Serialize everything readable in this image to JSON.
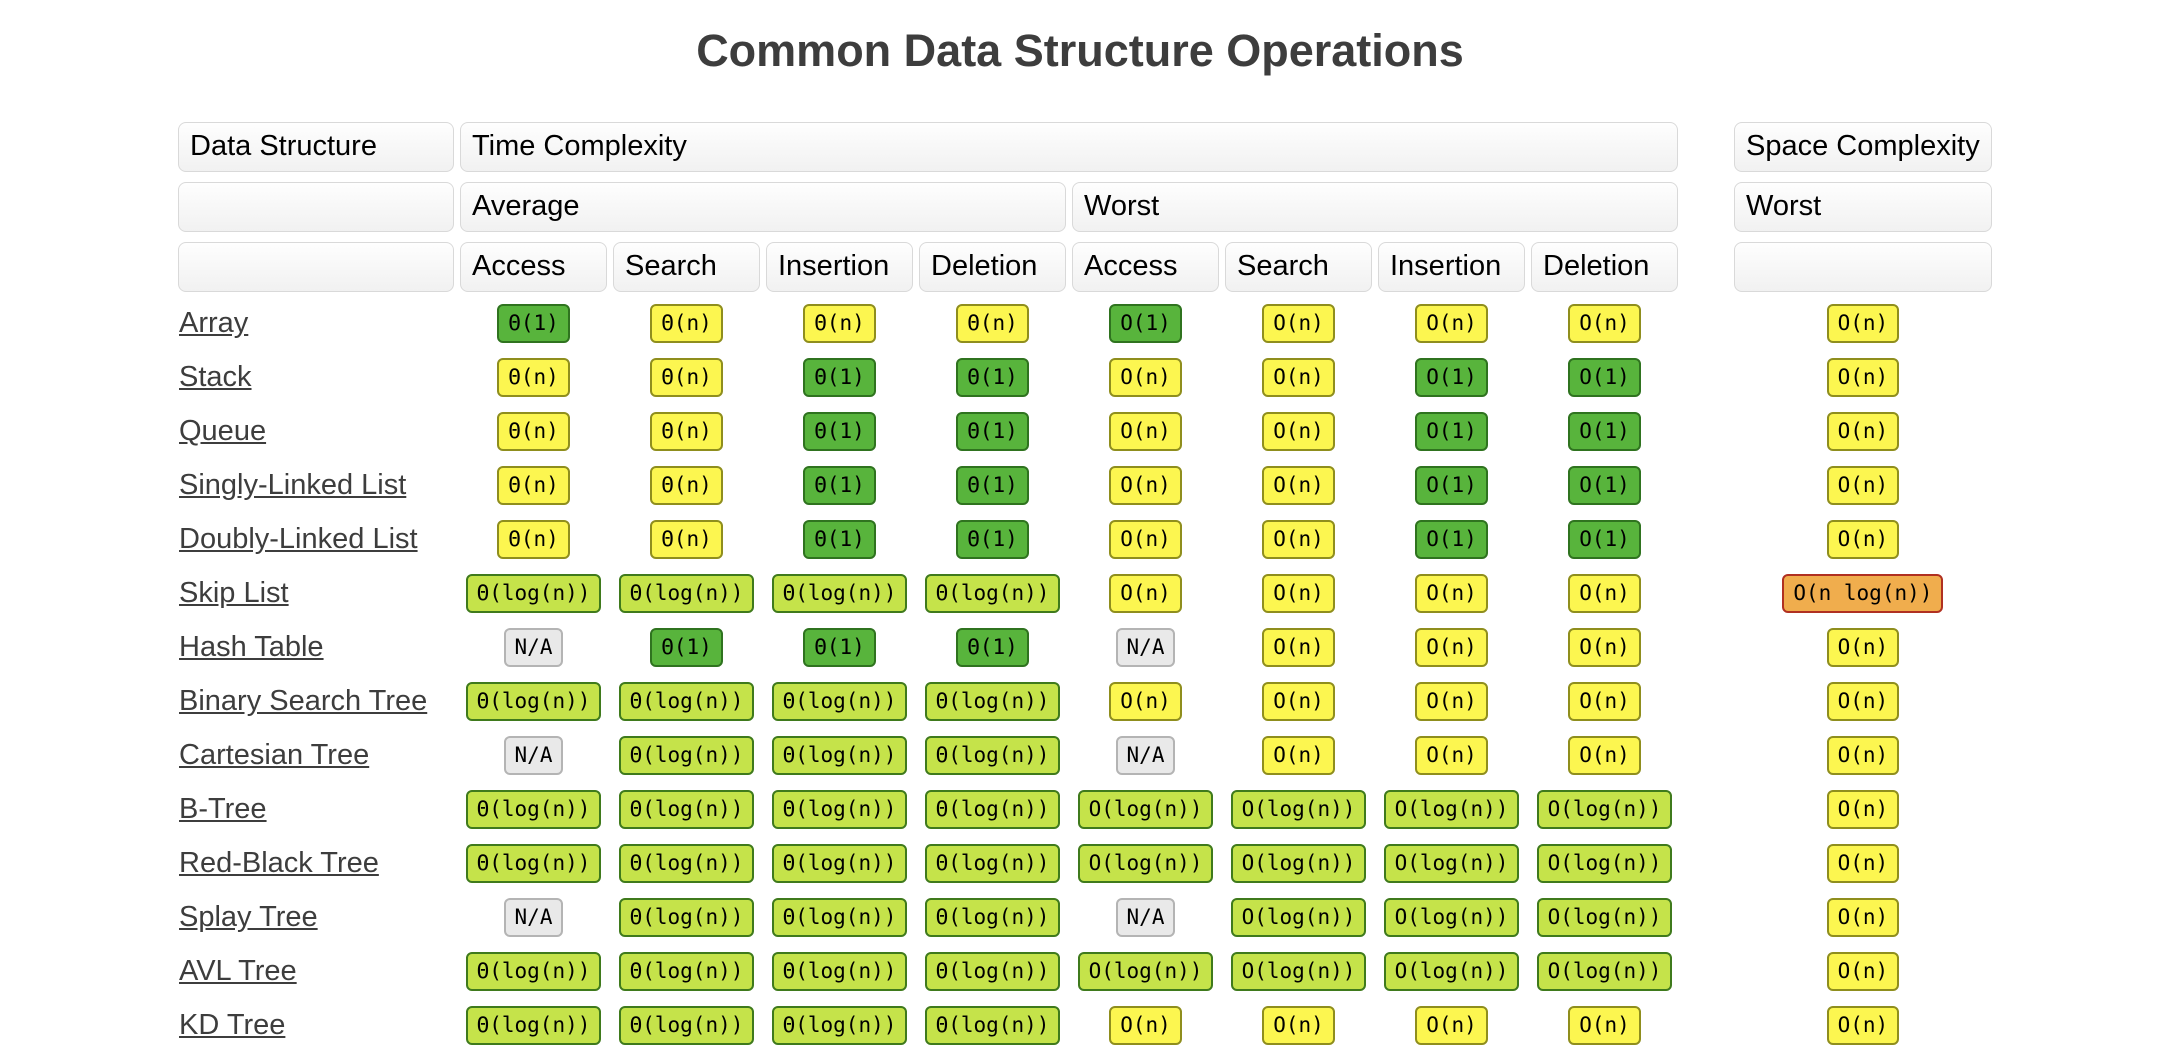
{
  "title": "Common Data Structure Operations",
  "table": {
    "group_headers": {
      "data_structure": "Data Structure",
      "time": "Time Complexity",
      "space": "Space Complexity"
    },
    "case_headers": {
      "average": "Average",
      "worst_time": "Worst",
      "worst_space": "Worst"
    },
    "operation_headers": [
      "Access",
      "Search",
      "Insertion",
      "Deletion",
      "Access",
      "Search",
      "Insertion",
      "Deletion"
    ],
    "rows": [
      {
        "name": "Array",
        "average": [
          [
            "Θ(1)",
            "green"
          ],
          [
            "Θ(n)",
            "yellow"
          ],
          [
            "Θ(n)",
            "yellow"
          ],
          [
            "Θ(n)",
            "yellow"
          ]
        ],
        "worst": [
          [
            "O(1)",
            "green"
          ],
          [
            "O(n)",
            "yellow"
          ],
          [
            "O(n)",
            "yellow"
          ],
          [
            "O(n)",
            "yellow"
          ]
        ],
        "space": [
          "O(n)",
          "yellow"
        ]
      },
      {
        "name": "Stack",
        "average": [
          [
            "Θ(n)",
            "yellow"
          ],
          [
            "Θ(n)",
            "yellow"
          ],
          [
            "Θ(1)",
            "green"
          ],
          [
            "Θ(1)",
            "green"
          ]
        ],
        "worst": [
          [
            "O(n)",
            "yellow"
          ],
          [
            "O(n)",
            "yellow"
          ],
          [
            "O(1)",
            "green"
          ],
          [
            "O(1)",
            "green"
          ]
        ],
        "space": [
          "O(n)",
          "yellow"
        ]
      },
      {
        "name": "Queue",
        "average": [
          [
            "Θ(n)",
            "yellow"
          ],
          [
            "Θ(n)",
            "yellow"
          ],
          [
            "Θ(1)",
            "green"
          ],
          [
            "Θ(1)",
            "green"
          ]
        ],
        "worst": [
          [
            "O(n)",
            "yellow"
          ],
          [
            "O(n)",
            "yellow"
          ],
          [
            "O(1)",
            "green"
          ],
          [
            "O(1)",
            "green"
          ]
        ],
        "space": [
          "O(n)",
          "yellow"
        ]
      },
      {
        "name": "Singly-Linked List",
        "average": [
          [
            "Θ(n)",
            "yellow"
          ],
          [
            "Θ(n)",
            "yellow"
          ],
          [
            "Θ(1)",
            "green"
          ],
          [
            "Θ(1)",
            "green"
          ]
        ],
        "worst": [
          [
            "O(n)",
            "yellow"
          ],
          [
            "O(n)",
            "yellow"
          ],
          [
            "O(1)",
            "green"
          ],
          [
            "O(1)",
            "green"
          ]
        ],
        "space": [
          "O(n)",
          "yellow"
        ]
      },
      {
        "name": "Doubly-Linked List",
        "average": [
          [
            "Θ(n)",
            "yellow"
          ],
          [
            "Θ(n)",
            "yellow"
          ],
          [
            "Θ(1)",
            "green"
          ],
          [
            "Θ(1)",
            "green"
          ]
        ],
        "worst": [
          [
            "O(n)",
            "yellow"
          ],
          [
            "O(n)",
            "yellow"
          ],
          [
            "O(1)",
            "green"
          ],
          [
            "O(1)",
            "green"
          ]
        ],
        "space": [
          "O(n)",
          "yellow"
        ]
      },
      {
        "name": "Skip List",
        "average": [
          [
            "Θ(log(n))",
            "yellowgreen"
          ],
          [
            "Θ(log(n))",
            "yellowgreen"
          ],
          [
            "Θ(log(n))",
            "yellowgreen"
          ],
          [
            "Θ(log(n))",
            "yellowgreen"
          ]
        ],
        "worst": [
          [
            "O(n)",
            "yellow"
          ],
          [
            "O(n)",
            "yellow"
          ],
          [
            "O(n)",
            "yellow"
          ],
          [
            "O(n)",
            "yellow"
          ]
        ],
        "space": [
          "O(n log(n))",
          "orange"
        ]
      },
      {
        "name": "Hash Table",
        "average": [
          [
            "N/A",
            "gray"
          ],
          [
            "Θ(1)",
            "green"
          ],
          [
            "Θ(1)",
            "green"
          ],
          [
            "Θ(1)",
            "green"
          ]
        ],
        "worst": [
          [
            "N/A",
            "gray"
          ],
          [
            "O(n)",
            "yellow"
          ],
          [
            "O(n)",
            "yellow"
          ],
          [
            "O(n)",
            "yellow"
          ]
        ],
        "space": [
          "O(n)",
          "yellow"
        ]
      },
      {
        "name": "Binary Search Tree",
        "average": [
          [
            "Θ(log(n))",
            "yellowgreen"
          ],
          [
            "Θ(log(n))",
            "yellowgreen"
          ],
          [
            "Θ(log(n))",
            "yellowgreen"
          ],
          [
            "Θ(log(n))",
            "yellowgreen"
          ]
        ],
        "worst": [
          [
            "O(n)",
            "yellow"
          ],
          [
            "O(n)",
            "yellow"
          ],
          [
            "O(n)",
            "yellow"
          ],
          [
            "O(n)",
            "yellow"
          ]
        ],
        "space": [
          "O(n)",
          "yellow"
        ]
      },
      {
        "name": "Cartesian Tree",
        "average": [
          [
            "N/A",
            "gray"
          ],
          [
            "Θ(log(n))",
            "yellowgreen"
          ],
          [
            "Θ(log(n))",
            "yellowgreen"
          ],
          [
            "Θ(log(n))",
            "yellowgreen"
          ]
        ],
        "worst": [
          [
            "N/A",
            "gray"
          ],
          [
            "O(n)",
            "yellow"
          ],
          [
            "O(n)",
            "yellow"
          ],
          [
            "O(n)",
            "yellow"
          ]
        ],
        "space": [
          "O(n)",
          "yellow"
        ]
      },
      {
        "name": "B-Tree",
        "average": [
          [
            "Θ(log(n))",
            "yellowgreen"
          ],
          [
            "Θ(log(n))",
            "yellowgreen"
          ],
          [
            "Θ(log(n))",
            "yellowgreen"
          ],
          [
            "Θ(log(n))",
            "yellowgreen"
          ]
        ],
        "worst": [
          [
            "O(log(n))",
            "yellowgreen"
          ],
          [
            "O(log(n))",
            "yellowgreen"
          ],
          [
            "O(log(n))",
            "yellowgreen"
          ],
          [
            "O(log(n))",
            "yellowgreen"
          ]
        ],
        "space": [
          "O(n)",
          "yellow"
        ]
      },
      {
        "name": "Red-Black Tree",
        "average": [
          [
            "Θ(log(n))",
            "yellowgreen"
          ],
          [
            "Θ(log(n))",
            "yellowgreen"
          ],
          [
            "Θ(log(n))",
            "yellowgreen"
          ],
          [
            "Θ(log(n))",
            "yellowgreen"
          ]
        ],
        "worst": [
          [
            "O(log(n))",
            "yellowgreen"
          ],
          [
            "O(log(n))",
            "yellowgreen"
          ],
          [
            "O(log(n))",
            "yellowgreen"
          ],
          [
            "O(log(n))",
            "yellowgreen"
          ]
        ],
        "space": [
          "O(n)",
          "yellow"
        ]
      },
      {
        "name": "Splay Tree",
        "average": [
          [
            "N/A",
            "gray"
          ],
          [
            "Θ(log(n))",
            "yellowgreen"
          ],
          [
            "Θ(log(n))",
            "yellowgreen"
          ],
          [
            "Θ(log(n))",
            "yellowgreen"
          ]
        ],
        "worst": [
          [
            "N/A",
            "gray"
          ],
          [
            "O(log(n))",
            "yellowgreen"
          ],
          [
            "O(log(n))",
            "yellowgreen"
          ],
          [
            "O(log(n))",
            "yellowgreen"
          ]
        ],
        "space": [
          "O(n)",
          "yellow"
        ]
      },
      {
        "name": "AVL Tree",
        "average": [
          [
            "Θ(log(n))",
            "yellowgreen"
          ],
          [
            "Θ(log(n))",
            "yellowgreen"
          ],
          [
            "Θ(log(n))",
            "yellowgreen"
          ],
          [
            "Θ(log(n))",
            "yellowgreen"
          ]
        ],
        "worst": [
          [
            "O(log(n))",
            "yellowgreen"
          ],
          [
            "O(log(n))",
            "yellowgreen"
          ],
          [
            "O(log(n))",
            "yellowgreen"
          ],
          [
            "O(log(n))",
            "yellowgreen"
          ]
        ],
        "space": [
          "O(n)",
          "yellow"
        ]
      },
      {
        "name": "KD Tree",
        "average": [
          [
            "Θ(log(n))",
            "yellowgreen"
          ],
          [
            "Θ(log(n))",
            "yellowgreen"
          ],
          [
            "Θ(log(n))",
            "yellowgreen"
          ],
          [
            "Θ(log(n))",
            "yellowgreen"
          ]
        ],
        "worst": [
          [
            "O(n)",
            "yellow"
          ],
          [
            "O(n)",
            "yellow"
          ],
          [
            "O(n)",
            "yellow"
          ],
          [
            "O(n)",
            "yellow"
          ]
        ],
        "space": [
          "O(n)",
          "yellow"
        ]
      }
    ]
  },
  "colors": {
    "title": "#3d3d3d",
    "link": "#3d3d3d",
    "header_bg_top": "#fefefe",
    "header_bg_bottom": "#f1f1f1",
    "header_border": "#d9d9d9",
    "badges": {
      "green": {
        "bg": "#58b43c",
        "border": "#2f731f"
      },
      "yellowgreen": {
        "bg": "#c5e34a",
        "border": "#3f7a1c"
      },
      "yellow": {
        "bg": "#fcf650",
        "border": "#8f8e1d"
      },
      "gray": {
        "bg": "#e9e9e9",
        "border": "#b4b4b4"
      },
      "orange": {
        "bg": "#f0ad4d",
        "border": "#b03021"
      }
    }
  }
}
